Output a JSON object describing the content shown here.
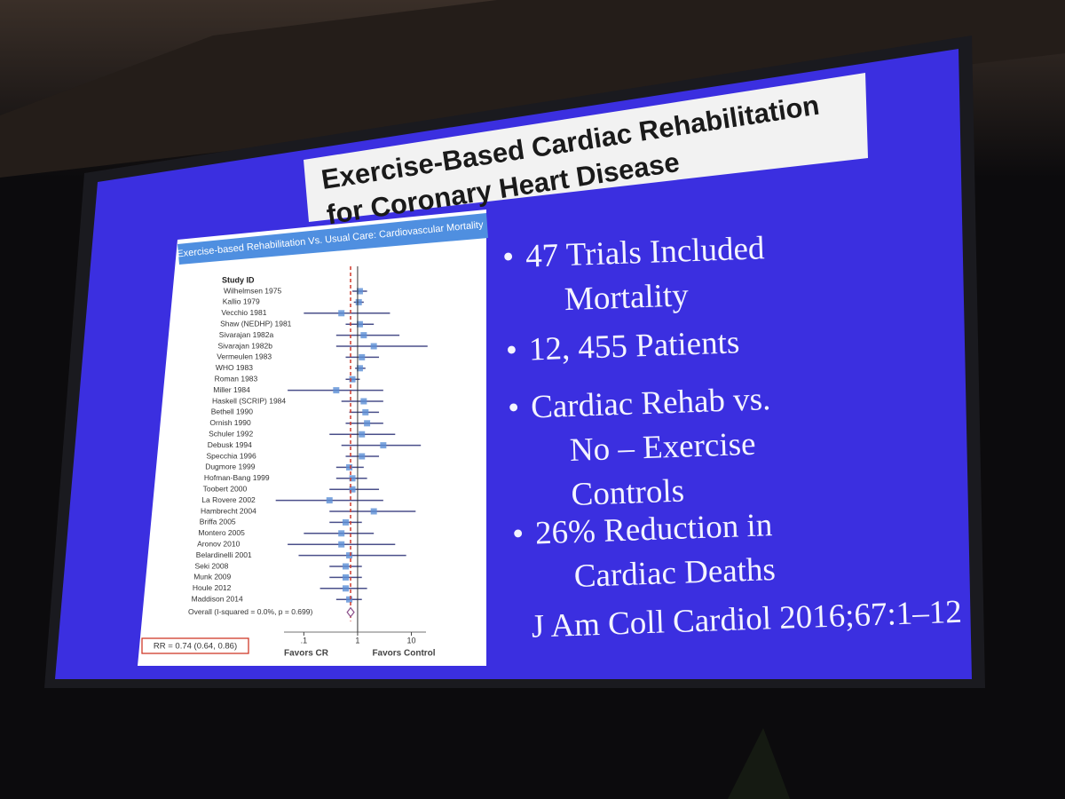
{
  "title": [
    "Exercise-Based Cardiac Rehabilitation",
    "for Coronary Heart Disease"
  ],
  "bullets": [
    [
      "47  Trials  Included",
      "Mortality"
    ],
    [
      "12, 455  Patients"
    ],
    [
      "Cardiac  Rehab  vs.",
      "No – Exercise",
      "Controls"
    ],
    [
      "26% Reduction  in",
      "Cardiac  Deaths"
    ]
  ],
  "citation": "J Am Coll Cardiol 2016;67:1–12",
  "chart_data": {
    "type": "forest",
    "title": "Exercise-based Rehabilitation Vs. Usual Care: Cardiovascular Mortality",
    "column_header": "Study ID",
    "studies": [
      "Wilhelmsen 1975",
      "Kallio 1979",
      "Vecchio 1981",
      "Shaw (NEDHP) 1981",
      "Sivarajan 1982a",
      "Sivarajan 1982b",
      "Vermeulen 1983",
      "WHO 1983",
      "Roman 1983",
      "Miller 1984",
      "Haskell (SCRIP) 1984",
      "Bethell 1990",
      "Ornish 1990",
      "Schuler 1992",
      "Debusk 1994",
      "Specchia 1996",
      "Dugmore 1999",
      "Hofman-Bang 1999",
      "Toobert 2000",
      "La Rovere 2002",
      "Hambrecht 2004",
      "Briffa 2005",
      "Montero 2005",
      "Aronov 2010",
      "Belardinelli 2001",
      "Seki 2008",
      "Munk 2009",
      "Houle 2012",
      "Maddison 2014"
    ],
    "estimates": [
      1.1,
      1.05,
      0.5,
      1.1,
      1.3,
      2,
      1.2,
      1.1,
      0.8,
      0.4,
      1.3,
      1.4,
      1.5,
      1.2,
      3,
      1.2,
      0.7,
      0.8,
      0.8,
      0.3,
      2,
      0.6,
      0.5,
      0.5,
      0.7,
      0.6,
      0.6,
      0.6,
      0.7
    ],
    "lower": [
      0.8,
      0.85,
      0.1,
      0.6,
      0.4,
      0.4,
      0.6,
      0.9,
      0.6,
      0.05,
      0.5,
      0.7,
      0.6,
      0.3,
      0.5,
      0.6,
      0.4,
      0.4,
      0.3,
      0.03,
      0.3,
      0.3,
      0.1,
      0.05,
      0.08,
      0.3,
      0.3,
      0.2,
      0.4
    ],
    "upper": [
      1.5,
      1.3,
      4,
      2,
      6,
      20,
      2.5,
      1.4,
      1.1,
      3,
      3,
      2.5,
      3,
      5,
      15,
      2.5,
      1.3,
      1.5,
      2.5,
      3,
      12,
      1.2,
      2,
      5,
      8,
      1.2,
      1.2,
      1.5,
      1.2
    ],
    "overall_label": "Overall (I-squared = 0.0%, p = 0.699)",
    "overall": {
      "estimate": 0.74,
      "lower": 0.64,
      "upper": 0.86
    },
    "summary_label": "RR = 0.74 (0.64, 0.86)",
    "xlim": [
      0.02,
      40
    ],
    "log_x": true,
    "xticks": [
      {
        "value": 0.1,
        "label": ".1"
      },
      1,
      10
    ],
    "x_labels": [
      "Favors CR",
      "Favors Control"
    ],
    "color": "#4a4f8a",
    "point_color": "#5b8fd6",
    "reference_color": "#d03a2a"
  }
}
